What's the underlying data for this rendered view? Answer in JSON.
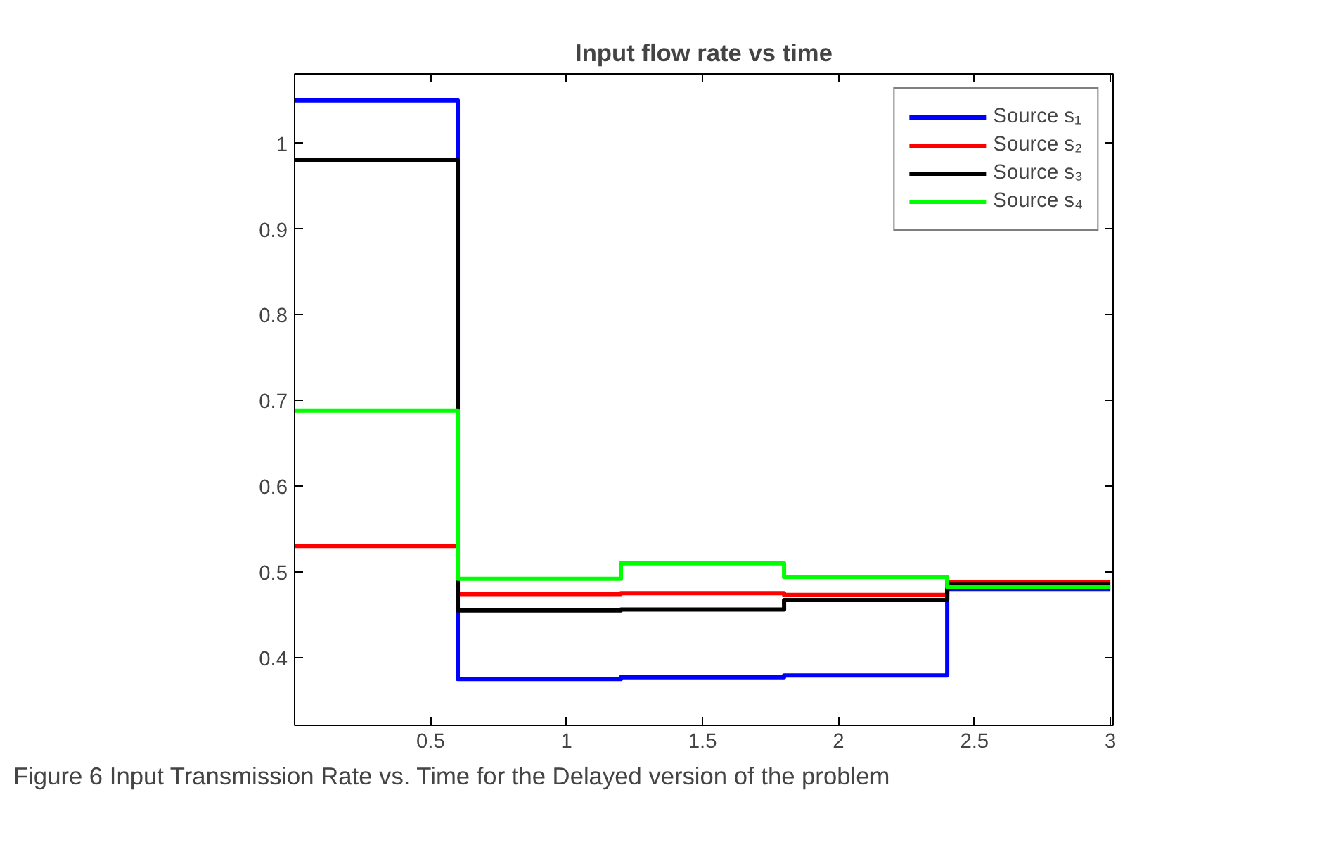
{
  "chart_data": {
    "type": "step",
    "title": "Input flow rate vs time",
    "x": [
      0,
      0.6,
      1.2,
      1.8,
      2.4,
      3.0
    ],
    "series": [
      {
        "name": "Source s₁",
        "color": "#0000ff",
        "values": [
          1.05,
          0.375,
          0.377,
          0.379,
          0.48,
          0.48
        ]
      },
      {
        "name": "Source s₂",
        "color": "#ff0000",
        "values": [
          0.53,
          0.474,
          0.475,
          0.473,
          0.488,
          0.488
        ]
      },
      {
        "name": "Source s₃",
        "color": "#000000",
        "values": [
          0.98,
          0.455,
          0.456,
          0.467,
          0.485,
          0.485
        ]
      },
      {
        "name": "Source s₄",
        "color": "#00ff00",
        "values": [
          0.688,
          0.492,
          0.51,
          0.494,
          0.482,
          0.482
        ]
      }
    ],
    "xlim": [
      0,
      3.01
    ],
    "ylim": [
      0.321,
      1.081
    ],
    "xticks": [
      0.5,
      1,
      1.5,
      2,
      2.5,
      3
    ],
    "yticks": [
      0.4,
      0.5,
      0.6,
      0.7,
      0.8,
      0.9,
      1
    ],
    "grid": false,
    "legend": "top right",
    "annotations": [
      "Figure 6  Input Transmission Rate vs. Time for the Delayed version of the problem"
    ]
  }
}
